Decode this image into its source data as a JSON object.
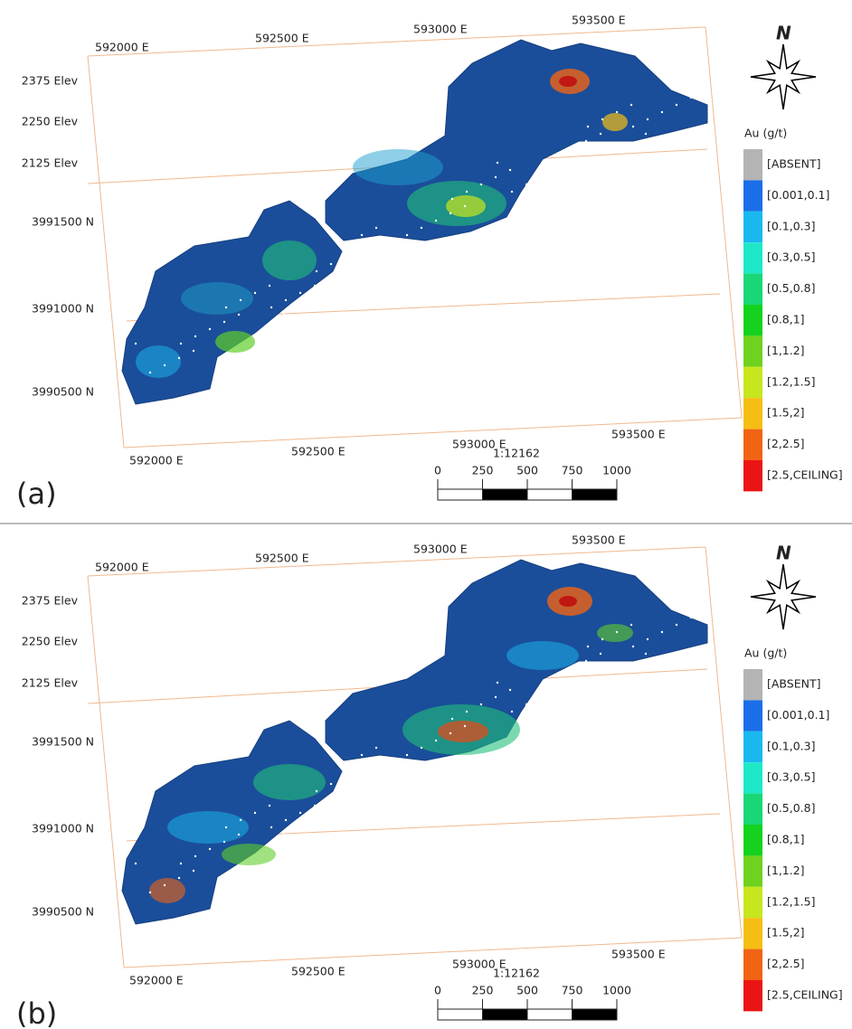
{
  "panels": [
    {
      "label": "(a)",
      "top_eastings": [
        "592000 E",
        "592500 E",
        "593000 E",
        "593500 E"
      ],
      "bottom_eastings": [
        "592000 E",
        "592500 E",
        "593000 E",
        "593500 E"
      ],
      "elevations": [
        "2375 Elev",
        "2250 Elev",
        "2125 Elev"
      ],
      "northings": [
        "3991500 N",
        "3991000 N",
        "3990500 N"
      ],
      "scale": {
        "ratio": "1:12162",
        "ticks": [
          0,
          250,
          500,
          750,
          1000
        ]
      },
      "north": "N",
      "legend": {
        "title": "Au (g/t)",
        "items": [
          {
            "label": "[ABSENT]",
            "color": "#b4b4b4"
          },
          {
            "label": "[0.001,0.1]",
            "color": "#1a6ee8"
          },
          {
            "label": "[0.1,0.3]",
            "color": "#19b9f0"
          },
          {
            "label": "[0.3,0.5]",
            "color": "#1ee8c8"
          },
          {
            "label": "[0.5,0.8]",
            "color": "#19d776"
          },
          {
            "label": "[0.8,1]",
            "color": "#14d21e"
          },
          {
            "label": "[1,1.2]",
            "color": "#6fd21e"
          },
          {
            "label": "[1.2,1.5]",
            "color": "#c8e61e"
          },
          {
            "label": "[1.5,2]",
            "color": "#f5be14"
          },
          {
            "label": "[2,2.5]",
            "color": "#f06414"
          },
          {
            "label": "[2.5,CEILING]",
            "color": "#eb1414"
          }
        ]
      }
    },
    {
      "label": "(b)",
      "top_eastings": [
        "592000 E",
        "592500 E",
        "593000 E",
        "593500 E"
      ],
      "bottom_eastings": [
        "592000 E",
        "592500 E",
        "593000 E",
        "593500 E"
      ],
      "elevations": [
        "2375 Elev",
        "2250 Elev",
        "2125 Elev"
      ],
      "northings": [
        "3991500 N",
        "3991000 N",
        "3990500 N"
      ],
      "scale": {
        "ratio": "1:12162",
        "ticks": [
          0,
          250,
          500,
          750,
          1000
        ]
      },
      "north": "N",
      "legend": {
        "title": "Au (g/t)",
        "items": [
          {
            "label": "[ABSENT]",
            "color": "#b4b4b4"
          },
          {
            "label": "[0.001,0.1]",
            "color": "#1a6ee8"
          },
          {
            "label": "[0.1,0.3]",
            "color": "#19b9f0"
          },
          {
            "label": "[0.3,0.5]",
            "color": "#1ee8c8"
          },
          {
            "label": "[0.5,0.8]",
            "color": "#19d776"
          },
          {
            "label": "[0.8,1]",
            "color": "#14d21e"
          },
          {
            "label": "[1,1.2]",
            "color": "#6fd21e"
          },
          {
            "label": "[1.2,1.5]",
            "color": "#c8e61e"
          },
          {
            "label": "[1.5,2]",
            "color": "#f5be14"
          },
          {
            "label": "[2,2.5]",
            "color": "#f06414"
          },
          {
            "label": "[2.5,CEILING]",
            "color": "#eb1414"
          }
        ]
      }
    }
  ]
}
